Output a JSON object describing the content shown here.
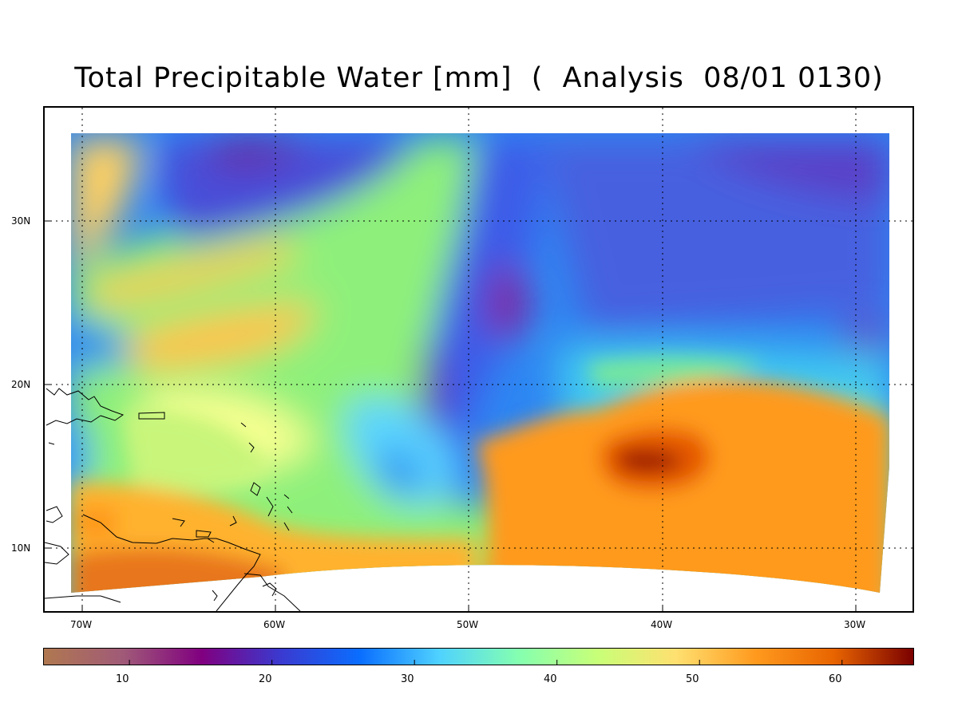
{
  "title": "Total Precipitable Water [mm]  (  Analysis  08/01 0130)",
  "map": {
    "lat_labels": [
      "30N",
      "20N",
      "10N"
    ],
    "lon_labels": [
      "70W",
      "60W",
      "50W",
      "40W",
      "30W"
    ]
  },
  "colorbar": {
    "min": 4,
    "max": 65,
    "tick_labels": [
      "10",
      "20",
      "30",
      "40",
      "50",
      "60"
    ],
    "colors": [
      "#b07850",
      "#a05a78",
      "#800080",
      "#3a3ad0",
      "#0a6eff",
      "#4fd2ff",
      "#84ffb0",
      "#c8ff78",
      "#ffe070",
      "#ff9a1e",
      "#e86400",
      "#7a0000"
    ]
  }
}
